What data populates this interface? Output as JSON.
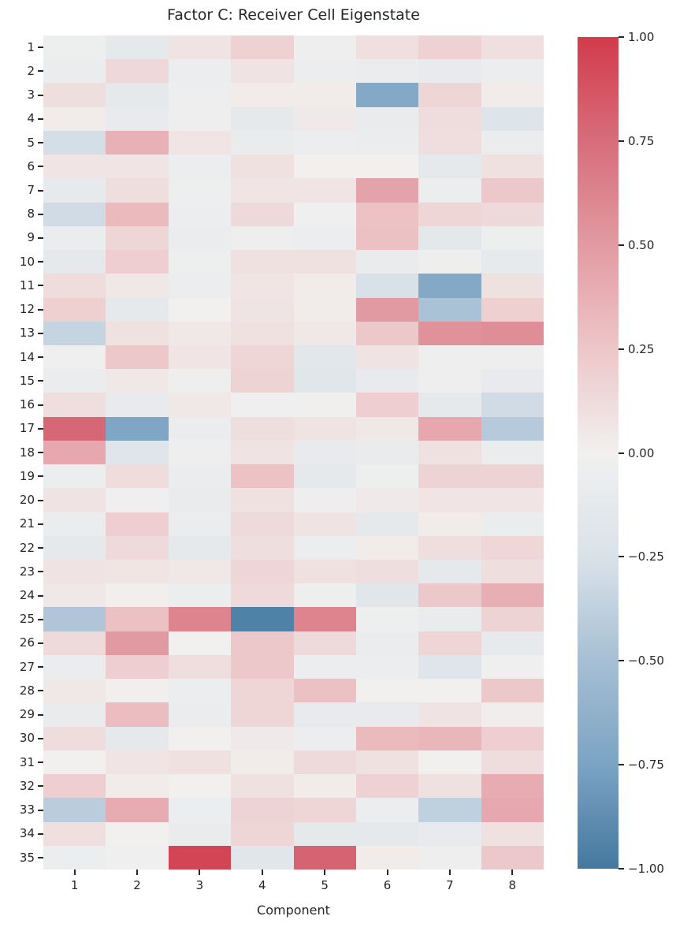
{
  "title": "Factor C: Receiver Cell Eigenstate",
  "xaxis_label": "Component",
  "chart_data": {
    "type": "heatmap",
    "title": "Factor C: Receiver Cell Eigenstate",
    "xlabel": "Component",
    "ylabel": "",
    "x_categories": [
      "1",
      "2",
      "3",
      "4",
      "5",
      "6",
      "7",
      "8"
    ],
    "y_categories": [
      "1",
      "2",
      "3",
      "4",
      "5",
      "6",
      "7",
      "8",
      "9",
      "10",
      "11",
      "12",
      "13",
      "14",
      "15",
      "16",
      "17",
      "18",
      "19",
      "20",
      "21",
      "22",
      "23",
      "24",
      "25",
      "26",
      "27",
      "28",
      "29",
      "30",
      "31",
      "32",
      "33",
      "34",
      "35"
    ],
    "values": [
      [
        -0.04,
        -0.13,
        0.08,
        0.18,
        -0.03,
        0.1,
        0.18,
        0.1
      ],
      [
        -0.08,
        0.14,
        -0.06,
        0.08,
        -0.06,
        -0.07,
        -0.1,
        -0.06
      ],
      [
        0.11,
        -0.12,
        -0.03,
        0.03,
        0.03,
        -0.7,
        0.16,
        0.03
      ],
      [
        0.03,
        -0.1,
        -0.03,
        -0.12,
        0.04,
        -0.09,
        0.12,
        -0.22
      ],
      [
        -0.28,
        0.37,
        0.07,
        -0.09,
        -0.05,
        -0.08,
        0.11,
        -0.07
      ],
      [
        0.07,
        0.07,
        -0.05,
        0.09,
        0.0,
        0.0,
        -0.13,
        0.09
      ],
      [
        -0.11,
        0.11,
        -0.04,
        0.07,
        0.07,
        0.45,
        -0.05,
        0.24
      ],
      [
        -0.3,
        0.32,
        -0.05,
        0.13,
        -0.01,
        0.27,
        0.16,
        0.13
      ],
      [
        -0.08,
        0.16,
        -0.08,
        -0.03,
        -0.05,
        0.28,
        -0.15,
        -0.04
      ],
      [
        -0.13,
        0.2,
        -0.04,
        0.09,
        0.09,
        -0.09,
        -0.03,
        -0.11
      ],
      [
        0.12,
        0.05,
        -0.06,
        0.07,
        0.03,
        -0.26,
        -0.7,
        0.09
      ],
      [
        0.19,
        -0.13,
        0.0,
        0.08,
        0.03,
        0.5,
        -0.48,
        0.19
      ],
      [
        -0.35,
        0.09,
        0.05,
        0.09,
        0.05,
        0.24,
        0.55,
        0.57
      ],
      [
        -0.01,
        0.24,
        0.07,
        0.16,
        -0.16,
        0.08,
        -0.03,
        -0.03
      ],
      [
        -0.08,
        0.05,
        -0.03,
        0.17,
        -0.17,
        -0.1,
        -0.03,
        -0.1
      ],
      [
        0.11,
        -0.1,
        0.05,
        -0.01,
        -0.01,
        0.2,
        -0.12,
        -0.3
      ],
      [
        0.78,
        -0.72,
        -0.08,
        0.11,
        0.08,
        0.05,
        0.42,
        -0.42
      ],
      [
        0.42,
        -0.2,
        -0.03,
        0.08,
        -0.1,
        -0.09,
        0.09,
        -0.08
      ],
      [
        -0.06,
        0.12,
        -0.08,
        0.27,
        -0.12,
        -0.04,
        0.17,
        0.17
      ],
      [
        0.08,
        -0.01,
        -0.09,
        0.09,
        -0.03,
        0.04,
        0.07,
        0.07
      ],
      [
        -0.08,
        0.2,
        -0.08,
        0.13,
        0.08,
        -0.13,
        0.03,
        -0.08
      ],
      [
        -0.12,
        0.13,
        -0.12,
        0.11,
        -0.05,
        0.03,
        0.11,
        0.15
      ],
      [
        0.08,
        0.07,
        0.05,
        0.16,
        0.09,
        0.11,
        -0.12,
        0.11
      ],
      [
        0.05,
        0.01,
        -0.05,
        0.13,
        -0.03,
        -0.17,
        0.24,
        0.38
      ],
      [
        -0.45,
        0.28,
        0.62,
        -0.95,
        0.62,
        -0.04,
        -0.09,
        0.17
      ],
      [
        0.13,
        0.5,
        0.0,
        0.24,
        0.13,
        -0.08,
        0.16,
        -0.11
      ],
      [
        -0.08,
        0.2,
        0.11,
        0.24,
        -0.06,
        -0.06,
        -0.2,
        -0.01
      ],
      [
        0.05,
        0.01,
        -0.05,
        0.16,
        0.28,
        0.0,
        0.0,
        0.24
      ],
      [
        -0.09,
        0.3,
        -0.08,
        0.16,
        -0.1,
        -0.1,
        0.08,
        0.02
      ],
      [
        0.12,
        -0.13,
        0.0,
        0.04,
        -0.06,
        0.32,
        0.34,
        0.2
      ],
      [
        0.0,
        0.07,
        0.09,
        0.03,
        0.13,
        0.09,
        0.0,
        0.12
      ],
      [
        0.2,
        0.03,
        0.0,
        0.09,
        0.03,
        0.18,
        0.09,
        0.4
      ],
      [
        -0.4,
        0.4,
        -0.05,
        0.17,
        0.16,
        -0.06,
        -0.38,
        0.42
      ],
      [
        0.1,
        0.0,
        -0.09,
        0.16,
        -0.12,
        -0.12,
        -0.1,
        0.09
      ],
      [
        -0.06,
        -0.01,
        0.95,
        -0.17,
        0.8,
        0.03,
        -0.03,
        0.24
      ]
    ],
    "value_range": [
      -1,
      1
    ],
    "grid": false,
    "legend_position": "right-colorbar",
    "colormap_stops": [
      {
        "value": -1.0,
        "color": "#45789f"
      },
      {
        "value": -0.75,
        "color": "#7ba3c3"
      },
      {
        "value": -0.5,
        "color": "#a6bfd4"
      },
      {
        "value": -0.25,
        "color": "#dae2e9"
      },
      {
        "value": 0.0,
        "color": "#f1f0ef"
      },
      {
        "value": 0.25,
        "color": "#edc6c8"
      },
      {
        "value": 0.5,
        "color": "#e29aa2"
      },
      {
        "value": 0.75,
        "color": "#d76d7a"
      },
      {
        "value": 1.0,
        "color": "#d23b4c"
      }
    ],
    "colorbar": {
      "min": -1.0,
      "max": 1.0,
      "tick_labels": [
        "1.00",
        "0.75",
        "0.50",
        "0.25",
        "0.00",
        "−0.25",
        "−0.50",
        "−0.75",
        "−1.00"
      ]
    }
  },
  "text_color": "#262626"
}
